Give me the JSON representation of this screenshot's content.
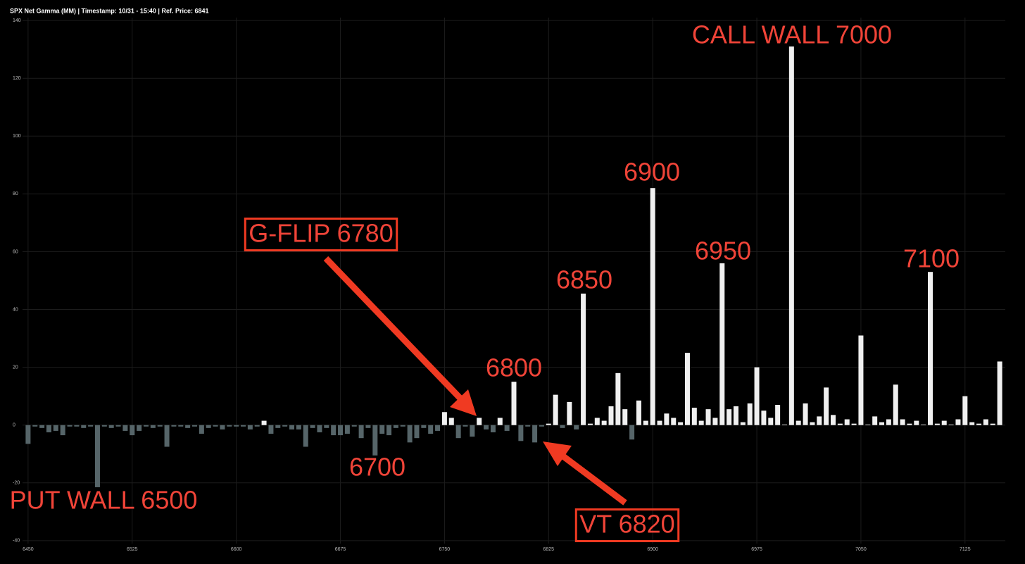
{
  "chart_data": {
    "type": "bar",
    "title": "SPX Net Gamma (MM) | Timestamp: 10/31 - 15:40  | Ref. Price: 6841",
    "x": [
      6450,
      6455,
      6460,
      6465,
      6470,
      6475,
      6480,
      6485,
      6490,
      6495,
      6500,
      6505,
      6510,
      6515,
      6520,
      6525,
      6530,
      6535,
      6540,
      6545,
      6550,
      6555,
      6560,
      6565,
      6570,
      6575,
      6580,
      6585,
      6590,
      6595,
      6600,
      6605,
      6610,
      6615,
      6620,
      6625,
      6630,
      6635,
      6640,
      6645,
      6650,
      6655,
      6660,
      6665,
      6670,
      6675,
      6680,
      6685,
      6690,
      6695,
      6700,
      6705,
      6710,
      6715,
      6720,
      6725,
      6730,
      6735,
      6740,
      6745,
      6750,
      6755,
      6760,
      6765,
      6770,
      6775,
      6780,
      6785,
      6790,
      6795,
      6800,
      6805,
      6810,
      6815,
      6820,
      6825,
      6830,
      6835,
      6840,
      6845,
      6850,
      6855,
      6860,
      6865,
      6870,
      6875,
      6880,
      6885,
      6890,
      6895,
      6900,
      6905,
      6910,
      6915,
      6920,
      6925,
      6930,
      6935,
      6940,
      6945,
      6950,
      6955,
      6960,
      6965,
      6970,
      6975,
      6980,
      6985,
      6990,
      6995,
      7000,
      7005,
      7010,
      7015,
      7020,
      7025,
      7030,
      7035,
      7040,
      7045,
      7050,
      7055,
      7060,
      7065,
      7070,
      7075,
      7080,
      7085,
      7090,
      7095,
      7100,
      7105,
      7110,
      7115,
      7120,
      7125,
      7130,
      7135,
      7140,
      7145,
      7150
    ],
    "values": [
      -6.5,
      -0.5,
      -1,
      -2.5,
      -2,
      -3.5,
      -0.5,
      -0.5,
      -1,
      -0.5,
      -21.5,
      -0.5,
      -1,
      -0.5,
      -2,
      -3.5,
      -2,
      -0.5,
      -1,
      -0.5,
      -7.5,
      -0.5,
      -0.5,
      -1,
      -0.5,
      -3,
      -1,
      -0.5,
      -1.5,
      -0.5,
      -0.5,
      -0.5,
      -1.5,
      -0.5,
      1.5,
      -3,
      -1,
      -0.5,
      -1.5,
      -1.5,
      -7.5,
      -1,
      -2.5,
      -1,
      -3.5,
      -3.5,
      -3,
      -0.5,
      -4.5,
      -1,
      -10.5,
      -3,
      -3.5,
      -1,
      -0.5,
      -6,
      -4.5,
      -1,
      -3,
      -2,
      4.5,
      2.5,
      -4.5,
      -0.5,
      -4,
      2.5,
      -1.5,
      -2.5,
      2.5,
      -2,
      15,
      -5.5,
      -0.5,
      -6,
      -0.5,
      0.5,
      10.5,
      -1,
      8,
      -1.5,
      45.5,
      0.5,
      2.5,
      1.5,
      6.5,
      18,
      5.5,
      -5,
      8.5,
      1.5,
      82,
      1.5,
      4,
      2.5,
      1,
      25,
      6,
      1.5,
      5.5,
      2.5,
      56,
      5.5,
      6.5,
      1,
      7.5,
      20,
      5,
      2.5,
      7,
      0.2,
      131,
      1.5,
      7.5,
      1,
      3,
      13,
      3.5,
      0.5,
      2,
      0.5,
      31,
      0.2,
      3,
      1,
      2,
      14,
      2,
      0.5,
      1.5,
      0.2,
      53,
      0.5,
      1.5,
      0.2,
      2,
      10,
      1,
      0.5,
      2,
      0.5,
      22
    ],
    "positive_color": "#f0f0f0",
    "negative_color": "#566569",
    "xlim": [
      6446,
      7154
    ],
    "xticks": [
      6450,
      6525,
      6600,
      6675,
      6750,
      6825,
      6900,
      6975,
      7050,
      7125
    ],
    "ylim": [
      -41,
      141
    ],
    "yticks": [
      -40,
      -20,
      0,
      20,
      40,
      60,
      80,
      100,
      120,
      140
    ],
    "grid": true,
    "annotations": [
      "CALL WALL 7000",
      "6900",
      "6950",
      "7100",
      "6850",
      "6800",
      "G-FLIP 6780",
      "6700",
      "PUT WALL 6500",
      "VT 6820"
    ]
  }
}
